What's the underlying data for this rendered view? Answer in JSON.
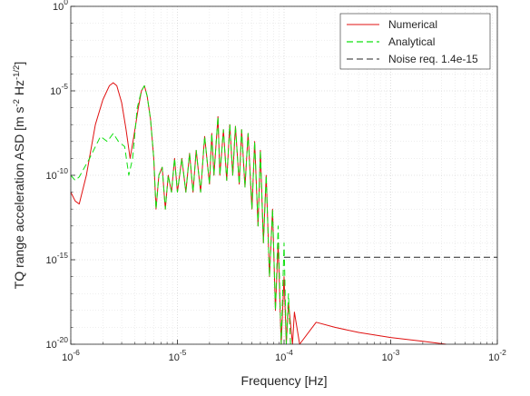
{
  "chart_data": {
    "type": "line",
    "title": "",
    "xlabel": "Frequency [Hz]",
    "ylabel": {
      "main": "TQ range acceleration ASD [m s",
      "exp1": "-2",
      "mid": " Hz",
      "exp2": "-1/2",
      "end": "]"
    },
    "xscale": "log",
    "yscale": "log",
    "xlim": [
      1e-06,
      0.01
    ],
    "ylim": [
      1e-20,
      1
    ],
    "grid": true,
    "minor_grid": true,
    "legend_position": "top-right",
    "x_ticks": [
      {
        "base": "10",
        "exp": "-6"
      },
      {
        "base": "10",
        "exp": "-5"
      },
      {
        "base": "10",
        "exp": "-4"
      },
      {
        "base": "10",
        "exp": "-3"
      },
      {
        "base": "10",
        "exp": "-2"
      }
    ],
    "y_ticks": [
      {
        "base": "10",
        "exp": "-20"
      },
      {
        "base": "10",
        "exp": "-15"
      },
      {
        "base": "10",
        "exp": "-10"
      },
      {
        "base": "10",
        "exp": "-5"
      },
      {
        "base": "10",
        "exp": "0"
      }
    ],
    "series": [
      {
        "name": "Numerical",
        "color": "#e01010",
        "style": "solid",
        "points": [
          [
            1e-06,
            1e-11
          ],
          [
            1.1e-06,
            3e-12
          ],
          [
            1.2e-06,
            2e-12
          ],
          [
            1.4e-06,
            1e-10
          ],
          [
            1.7e-06,
            1e-07
          ],
          [
            2e-06,
            3e-06
          ],
          [
            2.3e-06,
            2e-05
          ],
          [
            2.5e-06,
            3e-05
          ],
          [
            2.7e-06,
            2e-05
          ],
          [
            3e-06,
            2e-06
          ],
          [
            3.3e-06,
            5e-08
          ],
          [
            3.6e-06,
            1e-09
          ],
          [
            3.9e-06,
            2e-08
          ],
          [
            4.3e-06,
            1e-06
          ],
          [
            4.6e-06,
            1e-05
          ],
          [
            4.9e-06,
            2e-05
          ],
          [
            5.2e-06,
            5e-06
          ],
          [
            5.6e-06,
            2e-07
          ],
          [
            6e-06,
            1e-09
          ],
          [
            6.3e-06,
            1e-12
          ],
          [
            6.7e-06,
            1e-10
          ],
          [
            7.2e-06,
            3e-10
          ],
          [
            7.7e-06,
            1e-12
          ],
          [
            8.2e-06,
            1e-10
          ],
          [
            8.8e-06,
            1e-11
          ],
          [
            9.4e-06,
            1e-09
          ],
          [
            1e-05,
            1e-11
          ],
          [
            1.1e-05,
            1e-09
          ],
          [
            1.2e-05,
            1e-11
          ],
          [
            1.3e-05,
            2e-09
          ],
          [
            1.4e-05,
            1e-11
          ],
          [
            1.5e-05,
            3e-09
          ],
          [
            1.65e-05,
            1e-11
          ],
          [
            1.8e-05,
            2e-08
          ],
          [
            2e-05,
            3e-11
          ],
          [
            2.1e-05,
            3e-08
          ],
          [
            2.2e-05,
            1e-10
          ],
          [
            2.4e-05,
            3e-07
          ],
          [
            2.5e-05,
            1e-10
          ],
          [
            2.7e-05,
            5e-08
          ],
          [
            2.9e-05,
            5e-11
          ],
          [
            3.1e-05,
            1e-07
          ],
          [
            3.3e-05,
            1e-10
          ],
          [
            3.5e-05,
            8e-08
          ],
          [
            3.8e-05,
            3e-11
          ],
          [
            4e-05,
            5e-08
          ],
          [
            4.3e-05,
            2e-11
          ],
          [
            4.6e-05,
            3e-08
          ],
          [
            5e-05,
            1e-12
          ],
          [
            5.3e-05,
            1e-08
          ],
          [
            5.7e-05,
            1e-13
          ],
          [
            6e-05,
            3e-09
          ],
          [
            6.4e-05,
            1e-14
          ],
          [
            6.8e-05,
            1e-10
          ],
          [
            7.3e-05,
            1e-16
          ],
          [
            7.8e-05,
            1e-12
          ],
          [
            8.3e-05,
            1e-18
          ],
          [
            8.8e-05,
            1e-14
          ],
          [
            9.4e-05,
            1e-20
          ],
          [
            0.0001,
            1e-16
          ],
          [
            0.000105,
            1e-20
          ],
          [
            0.00011,
            3e-18
          ],
          [
            0.00012,
            1e-20
          ],
          [
            0.000125,
            8e-19
          ],
          [
            0.00014,
            1e-20
          ],
          [
            0.0002,
            2e-19
          ],
          [
            0.0003,
            1e-19
          ],
          [
            0.0005,
            5e-20
          ],
          [
            0.001,
            2.5e-20
          ],
          [
            0.002,
            1.5e-20
          ],
          [
            0.0033,
            1e-20
          ]
        ]
      },
      {
        "name": "Analytical",
        "color": "#10e010",
        "style": "dashed",
        "points": [
          [
            1e-06,
            1e-10
          ],
          [
            1.1e-06,
            5e-11
          ],
          [
            1.2e-06,
            8e-11
          ],
          [
            1.5e-06,
            1e-09
          ],
          [
            1.9e-06,
            2e-08
          ],
          [
            2.2e-06,
            1e-08
          ],
          [
            2.5e-06,
            3e-08
          ],
          [
            2.8e-06,
            1e-08
          ],
          [
            3.2e-06,
            5e-09
          ],
          [
            3.5e-06,
            1e-10
          ],
          [
            3.8e-06,
            1e-09
          ],
          [
            4.2e-06,
            1e-06
          ],
          [
            4.6e-06,
            1e-05
          ],
          [
            4.9e-06,
            2e-05
          ],
          [
            5.2e-06,
            5e-06
          ],
          [
            5.6e-06,
            2e-07
          ],
          [
            6e-06,
            1e-09
          ],
          [
            6.3e-06,
            1e-12
          ],
          [
            6.7e-06,
            1e-10
          ],
          [
            7.2e-06,
            3e-10
          ],
          [
            7.7e-06,
            1e-12
          ],
          [
            8.2e-06,
            1e-10
          ],
          [
            8.8e-06,
            1e-11
          ],
          [
            9.4e-06,
            1e-09
          ],
          [
            1e-05,
            1e-11
          ],
          [
            1.1e-05,
            1e-09
          ],
          [
            1.2e-05,
            1e-11
          ],
          [
            1.3e-05,
            2e-09
          ],
          [
            1.4e-05,
            1e-11
          ],
          [
            1.5e-05,
            3e-09
          ],
          [
            1.65e-05,
            1e-11
          ],
          [
            1.8e-05,
            2e-08
          ],
          [
            2e-05,
            3e-11
          ],
          [
            2.1e-05,
            3e-08
          ],
          [
            2.2e-05,
            1e-10
          ],
          [
            2.4e-05,
            3e-07
          ],
          [
            2.5e-05,
            1e-10
          ],
          [
            2.7e-05,
            5e-08
          ],
          [
            2.9e-05,
            5e-11
          ],
          [
            3.1e-05,
            1e-07
          ],
          [
            3.3e-05,
            1e-10
          ],
          [
            3.5e-05,
            8e-08
          ],
          [
            3.8e-05,
            3e-11
          ],
          [
            4e-05,
            5e-08
          ],
          [
            4.3e-05,
            2e-11
          ],
          [
            4.6e-05,
            3e-08
          ],
          [
            5e-05,
            1e-12
          ],
          [
            5.3e-05,
            1e-08
          ],
          [
            5.7e-05,
            1e-13
          ],
          [
            6e-05,
            3e-09
          ],
          [
            6.4e-05,
            1e-14
          ],
          [
            6.8e-05,
            1e-10
          ],
          [
            7.3e-05,
            1e-16
          ],
          [
            7.8e-05,
            1e-12
          ],
          [
            8.3e-05,
            1e-18
          ],
          [
            8.8e-05,
            1e-13
          ],
          [
            9.4e-05,
            1e-20
          ],
          [
            0.0001,
            1e-14
          ],
          [
            0.000105,
            1e-20
          ],
          [
            0.00011,
            1e-17
          ],
          [
            0.000115,
            1e-20
          ]
        ]
      },
      {
        "name": "Noise req. 1.4e-15",
        "color": "#262626",
        "style": "dashed",
        "points": [
          [
            0.0001,
            1.4e-15
          ],
          [
            0.01,
            1.4e-15
          ]
        ]
      }
    ]
  }
}
